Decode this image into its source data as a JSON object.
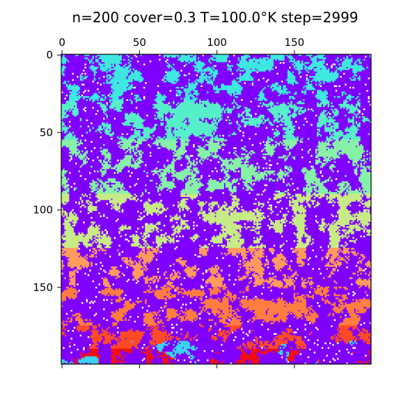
{
  "chart_data": {
    "type": "heatmap",
    "title": "n=200 cover=0.3 T=100.0°K step=2999",
    "xlabel": "",
    "ylabel": "",
    "grid_size": [
      200,
      200
    ],
    "xlim": [
      -0.5,
      199.5
    ],
    "ylim": [
      199.5,
      -0.5
    ],
    "x_ticks": [
      0,
      50,
      100,
      150
    ],
    "y_ticks": [
      0,
      50,
      100,
      150
    ],
    "x_tick_labels": [
      "0",
      "50",
      "100",
      "150"
    ],
    "y_tick_labels": [
      "0",
      "50",
      "100",
      "150"
    ],
    "x_tick_position": "top",
    "grid": false,
    "legend": "none",
    "colormap": "rainbow",
    "background_color": "#7f00ff",
    "band_colors": [
      {
        "rows": [
          0,
          30
        ],
        "color": "#3ee9e0"
      },
      {
        "rows": [
          30,
          55
        ],
        "color": "#56f0c8"
      },
      {
        "rows": [
          55,
          90
        ],
        "color": "#86f3a7"
      },
      {
        "rows": [
          90,
          125
        ],
        "color": "#c8ec84"
      },
      {
        "rows": [
          125,
          150
        ],
        "color": "#ff9c5c"
      },
      {
        "rows": [
          150,
          175
        ],
        "color": "#ff7e40"
      },
      {
        "rows": [
          175,
          190
        ],
        "color": "#ff4a26"
      },
      {
        "rows": [
          190,
          200
        ],
        "color": "#f40f0f"
      }
    ],
    "bottom_cyan_color": "#3ad3f0",
    "cover": 0.3
  }
}
